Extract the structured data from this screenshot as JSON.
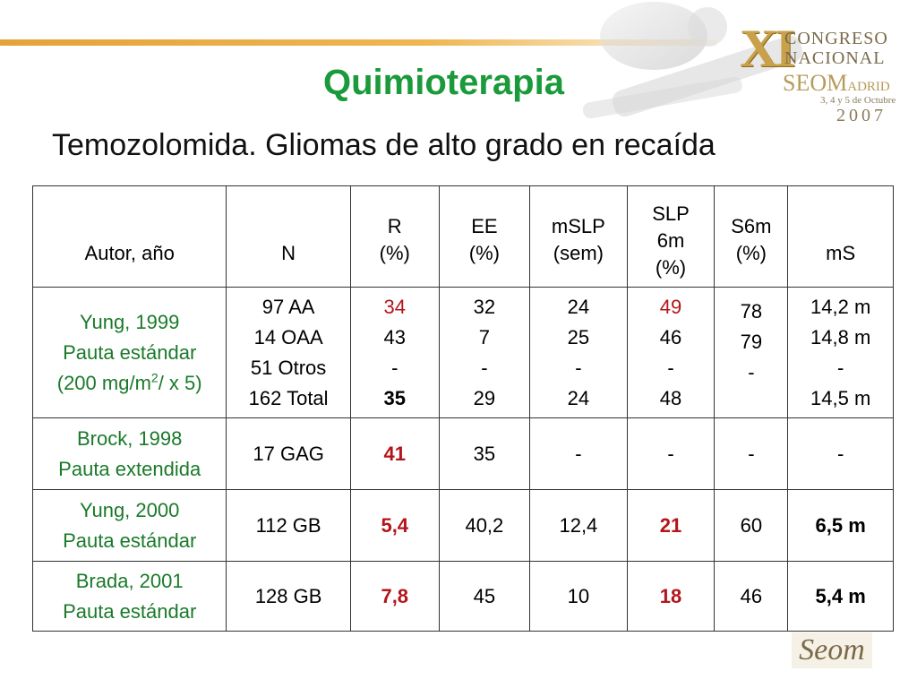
{
  "title": "Quimioterapia",
  "subtitle": "Temozolomida. Gliomas de alto grado en recaída",
  "logo": {
    "xi": "XI",
    "line1": "CONGRESO",
    "line2": "NACIONAL",
    "seom": "SEOM",
    "madrid": "ADRID",
    "dates": "3, 4 y 5 de Octubre",
    "year": "2007",
    "bottom_logo": "Seom"
  },
  "table": {
    "headers": {
      "author": "Autor, año",
      "n": "N",
      "r": [
        "R",
        "(%)"
      ],
      "ee": [
        "EE",
        "(%)"
      ],
      "mslp": [
        "mSLP",
        "(sem)"
      ],
      "slp6m": [
        "SLP",
        "6m",
        "(%)"
      ],
      "s6m": [
        "S6m",
        "(%)"
      ],
      "ms": "mS"
    },
    "rows": [
      {
        "author": [
          "Yung, 1999",
          "Pauta estándar",
          "(200 mg/m",
          "2",
          "/ x 5)"
        ],
        "n": [
          "97 AA",
          "14 OAA",
          "51 Otros",
          "162 Total"
        ],
        "r": [
          "34",
          "43",
          "-",
          "35"
        ],
        "ee": [
          "32",
          "7",
          "-",
          "29"
        ],
        "mslp": [
          "24",
          "25",
          "-",
          "24"
        ],
        "slp6m": [
          "49",
          "46",
          "-",
          "48"
        ],
        "s6m": [
          "78",
          "79",
          "-",
          ""
        ],
        "ms": [
          "14,2 m",
          "14,8 m",
          "-",
          "14,5 m"
        ]
      },
      {
        "author": [
          "Brock, 1998",
          "Pauta extendida"
        ],
        "n": "17 GAG",
        "r": "41",
        "ee": "35",
        "mslp": "-",
        "slp6m": "-",
        "s6m": "-",
        "ms": "-"
      },
      {
        "author": [
          "Yung, 2000",
          "Pauta estándar"
        ],
        "n": "112 GB",
        "r": "5,4",
        "ee": "40,2",
        "mslp": "12,4",
        "slp6m": "21",
        "s6m": "60",
        "ms": "6,5 m"
      },
      {
        "author": [
          "Brada, 2001",
          "Pauta estándar"
        ],
        "n": "128 GB",
        "r": "7,8",
        "ee": "45",
        "mslp": "10",
        "slp6m": "18",
        "s6m": "46",
        "ms": "5,4 m"
      }
    ]
  },
  "colors": {
    "title": "#1a9a3a",
    "author": "#1a7a2a",
    "highlight": "#b3151b",
    "rule": "#e4a33a"
  }
}
